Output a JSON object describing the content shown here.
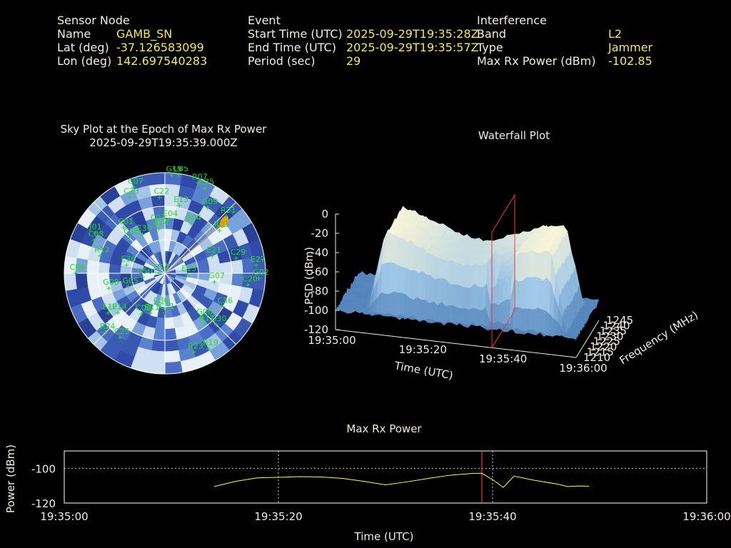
{
  "sensor": {
    "heading": "Sensor Node",
    "name_label": "Name",
    "name": "GAMB_SN",
    "lat_label": "Lat (deg)",
    "lat": "-37.126583099",
    "lon_label": "Lon (deg)",
    "lon": "142.697540283"
  },
  "event": {
    "heading": "Event",
    "start_label": "Start Time (UTC)",
    "start": "2025-09-29T19:35:28Z",
    "end_label": "End Time (UTC)",
    "end": "2025-09-29T19:35:57Z",
    "period_label": "Period (sec)",
    "period": "29"
  },
  "interference": {
    "heading": "Interference",
    "band_label": "Band",
    "band": "L2",
    "type_label": "Type",
    "type": "Jammer",
    "power_label": "Max Rx Power (dBm)",
    "power": "-102.85"
  },
  "colors": {
    "header_text": "#f2eed8",
    "value_text": "#f5e94a",
    "satellite": "#22dd22",
    "marker": "#ff3333",
    "max_power_line": "#ffff33"
  },
  "chart_data": [
    {
      "type": "scatter",
      "title": "Sky Plot at the Epoch of Max Rx Power",
      "subtitle": "2025-09-29T19:35:39.000Z",
      "projection": "polar",
      "satellites": [
        {
          "id": "G19",
          "az": 4,
          "el": 2
        },
        {
          "id": "C05",
          "az": 8,
          "el": 1
        },
        {
          "id": "R07",
          "az": 20,
          "el": 4
        },
        {
          "id": "C35",
          "az": 25,
          "el": 6
        },
        {
          "id": "C22",
          "az": 356,
          "el": 22
        },
        {
          "id": "E13",
          "az": 12,
          "el": 28
        },
        {
          "id": "G09",
          "az": 33,
          "el": 20
        },
        {
          "id": "R21",
          "az": 47,
          "el": 15
        },
        {
          "id": "E04",
          "az": 4,
          "el": 42
        },
        {
          "id": "G04",
          "az": 28,
          "el": 40
        },
        {
          "id": "R03",
          "az": 52,
          "el": 28
        },
        {
          "id": "E21",
          "az": 70,
          "el": 45
        },
        {
          "id": "C29",
          "az": 78,
          "el": 25
        },
        {
          "id": "E27",
          "az": 85,
          "el": 8
        },
        {
          "id": "G02",
          "az": 93,
          "el": 6
        },
        {
          "id": "C20",
          "az": 98,
          "el": 15
        },
        {
          "id": "G07",
          "az": 100,
          "el": 45
        },
        {
          "id": "E15",
          "az": 94,
          "el": 70
        },
        {
          "id": "C56",
          "az": 120,
          "el": 30
        },
        {
          "id": "G30",
          "az": 135,
          "el": 25
        },
        {
          "id": "R17",
          "az": 142,
          "el": 32
        },
        {
          "id": "G06",
          "az": 140,
          "el": 38
        },
        {
          "id": "R19",
          "az": 150,
          "el": 12
        },
        {
          "id": "R23",
          "az": 160,
          "el": 15
        },
        {
          "id": "C31",
          "az": 180,
          "el": 55
        },
        {
          "id": "C36",
          "az": 190,
          "el": 60
        },
        {
          "id": "E11",
          "az": 200,
          "el": 52
        },
        {
          "id": "C09",
          "az": 210,
          "el": 48
        },
        {
          "id": "G05",
          "az": 250,
          "el": 55
        },
        {
          "id": "C25",
          "az": 215,
          "el": 20
        },
        {
          "id": "R24",
          "az": 225,
          "el": 15
        },
        {
          "id": "E14",
          "az": 230,
          "el": 35
        },
        {
          "id": "E12",
          "az": 235,
          "el": 28
        },
        {
          "id": "G08",
          "az": 255,
          "el": 38
        },
        {
          "id": "C06",
          "az": 270,
          "el": 10
        },
        {
          "id": "C50",
          "az": 260,
          "el": 70
        },
        {
          "id": "C14",
          "az": 270,
          "el": 85
        },
        {
          "id": "E36",
          "az": 282,
          "el": 55
        },
        {
          "id": "R12",
          "az": 285,
          "el": 30
        },
        {
          "id": "C08",
          "az": 295,
          "el": 20
        },
        {
          "id": "J01",
          "az": 300,
          "el": 18
        },
        {
          "id": "C38",
          "az": 315,
          "el": 45
        },
        {
          "id": "C01",
          "az": 318,
          "el": 35
        },
        {
          "id": "E30",
          "az": 330,
          "el": 50
        },
        {
          "id": "C07",
          "az": 340,
          "el": 8
        },
        {
          "id": "C33",
          "az": 335,
          "el": 15
        },
        {
          "id": "C03",
          "az": 350,
          "el": 45
        },
        {
          "id": "C24",
          "az": 352,
          "el": 50
        }
      ],
      "jammer": {
        "az": 49,
        "el": 20
      }
    },
    {
      "type": "area",
      "title": "Waterfall Plot",
      "xlabel": "Time (UTC)",
      "ylabel": "Frequency (MHz)",
      "zlabel": "PSD (dBm)",
      "x_ticks": [
        "19:35:00",
        "19:35:20",
        "19:35:40",
        "19:36:00"
      ],
      "y_ticks": [
        "1210",
        "1215",
        "1220",
        "1225",
        "1230",
        "1235",
        "1240",
        "1245"
      ],
      "z_ticks": [
        "0",
        "-20",
        "-40",
        "-60",
        "-80",
        "-100",
        "-120"
      ],
      "zlim": [
        -120,
        0
      ],
      "peak_psd_dbm": -20,
      "noise_floor_dbm": -100
    },
    {
      "type": "line",
      "title": "Max Rx Power",
      "xlabel": "Time (UTC)",
      "ylabel": "Power (dBm)",
      "x_ticks": [
        "19:35:00",
        "19:35:20",
        "19:35:40",
        "19:36:00"
      ],
      "y_ticks": [
        "-100",
        "-120"
      ],
      "ylim": [
        -120,
        -90
      ],
      "x": [
        "19:35:14",
        "19:35:16",
        "19:35:18",
        "19:35:20",
        "19:35:22",
        "19:35:24",
        "19:35:26",
        "19:35:28",
        "19:35:30",
        "19:35:32",
        "19:35:34",
        "19:35:36",
        "19:35:38",
        "19:35:39",
        "19:35:40",
        "19:35:41",
        "19:35:42",
        "19:35:44",
        "19:35:46",
        "19:35:47",
        "19:35:48",
        "19:35:49"
      ],
      "series": [
        {
          "values": [
            -110.5,
            -107.5,
            -105.5,
            -105.2,
            -104.8,
            -105.0,
            -105.8,
            -107.5,
            -109.5,
            -107.8,
            -105.8,
            -104.0,
            -103.0,
            -102.85,
            -106.5,
            -111.0,
            -104.5,
            -107.0,
            -109.0,
            -110.5,
            -110.2,
            -110.3
          ]
        }
      ],
      "marker_time": "19:35:39"
    }
  ]
}
